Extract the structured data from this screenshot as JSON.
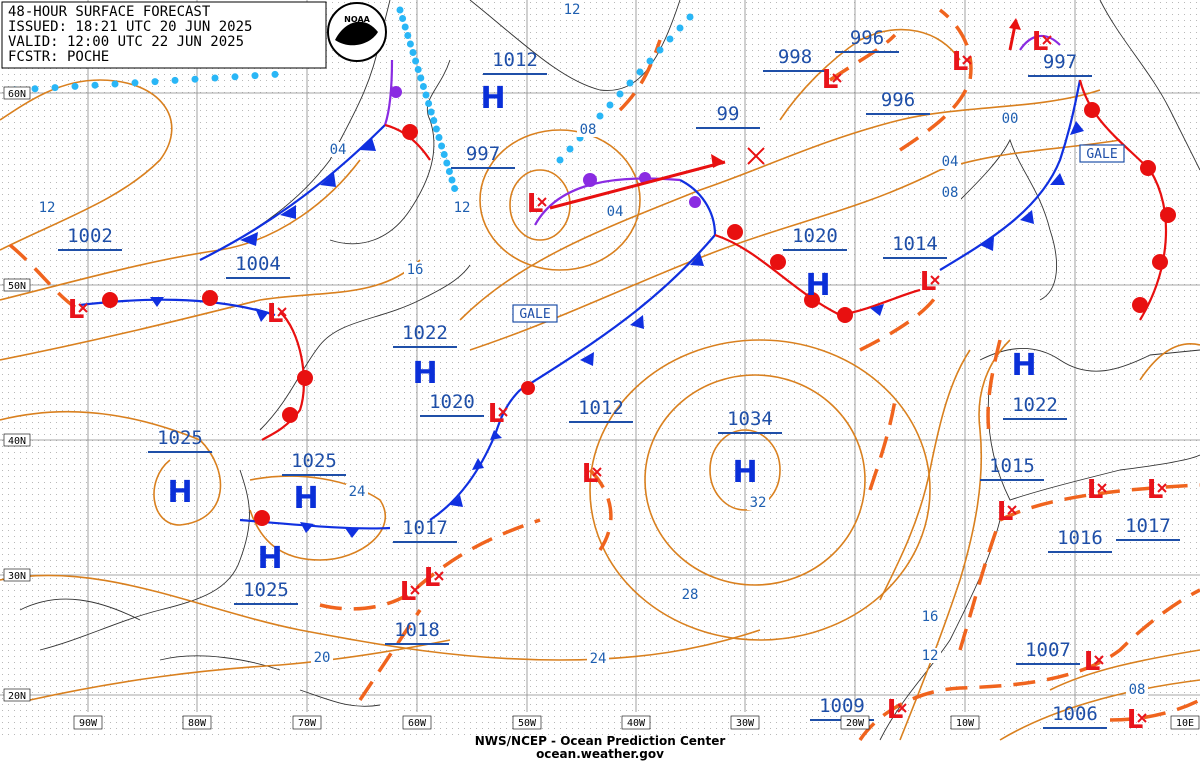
{
  "header": {
    "title": "48-HOUR SURFACE FORECAST",
    "issued": "ISSUED: 18:21 UTC 20 JUN 2025",
    "valid": "VALID:  12:00 UTC 22 JUN 2025",
    "forecaster": "FCSTR: POCHE",
    "logo": "NOAA"
  },
  "high_symbol": "H",
  "low_symbol": "L",
  "pressure_labels": [
    "1012",
    "997",
    "99",
    "998",
    "996",
    "996",
    "997",
    "1002",
    "1004",
    "1020",
    "1014",
    "1022",
    "1020",
    "1012",
    "1034",
    "1025",
    "1025",
    "1022",
    "1015",
    "1017",
    "1016",
    "1017",
    "1025",
    "1018",
    "1007",
    "1009",
    "1006"
  ],
  "isobar_labels": [
    "12",
    "08",
    "04",
    "04",
    "12",
    "12",
    "16",
    "24",
    "32",
    "28",
    "24",
    "20",
    "16",
    "12",
    "00",
    "04",
    "08",
    "08"
  ],
  "warnings": [
    "GALE",
    "GALE"
  ],
  "latitude_labels": [
    "60N",
    "50N",
    "40N",
    "30N",
    "20N"
  ],
  "longitude_labels": [
    "90W",
    "80W",
    "70W",
    "60W",
    "50W",
    "40W",
    "30W",
    "20W",
    "10W",
    "10E"
  ],
  "footer": {
    "source": "NWS/NCEP - Ocean Prediction Center",
    "url": "ocean.weather.gov"
  }
}
